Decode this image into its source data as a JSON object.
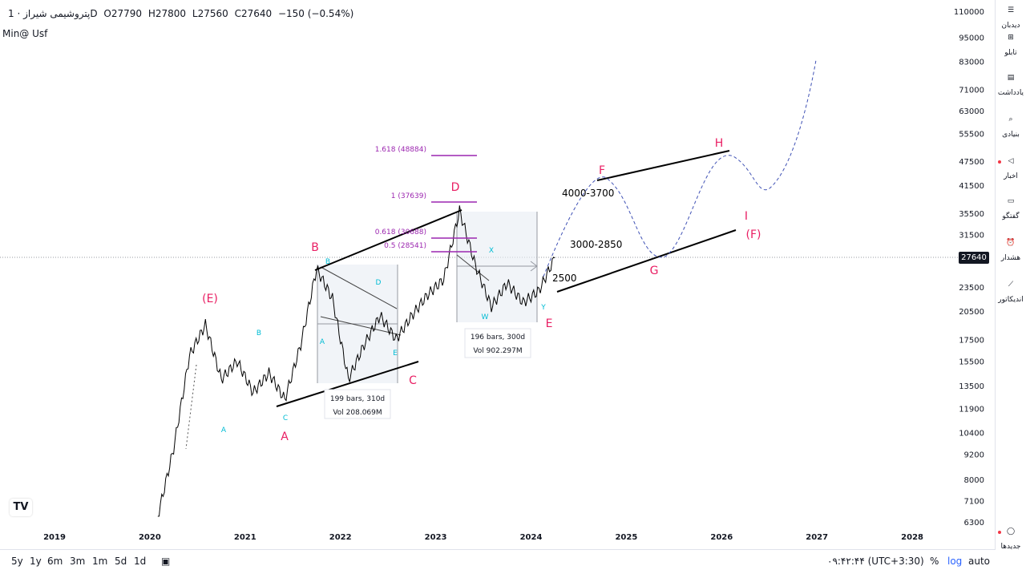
{
  "header": {
    "symbol": "پتروشیمی شیراز · 1D",
    "open": "O27790",
    "high": "H27800",
    "low": "L27560",
    "close": "C27640",
    "change": "−150 (−0.54%)",
    "subtitle": "Min@ Usf"
  },
  "chart_data": {
    "type": "line",
    "scale": "log",
    "x_tick_labels": [
      "2019",
      "2020",
      "2021",
      "2022",
      "2023",
      "2024",
      "2025",
      "2026",
      "2027",
      "2028"
    ],
    "y_tick_labels": [
      "110000",
      "95000",
      "83000",
      "71000",
      "63000",
      "55500",
      "47500",
      "41500",
      "35500",
      "31500",
      "27640",
      "23500",
      "20500",
      "17500",
      "15500",
      "13500",
      "11900",
      "10400",
      "9200",
      "8000",
      "7100",
      "6300"
    ],
    "last_price": "27640",
    "ylim": [
      6000,
      115000
    ],
    "series": [
      {
        "x": [
          "2020-02",
          "2020-04",
          "2020-06",
          "2020-08",
          "2020-10",
          "2020-12",
          "2021-02",
          "2021-04",
          "2021-06",
          "2021-08",
          "2021-10",
          "2021-12",
          "2022-02",
          "2022-04",
          "2022-06",
          "2022-08",
          "2022-10",
          "2022-12",
          "2023-02",
          "2023-04",
          "2023-06",
          "2023-08",
          "2023-10",
          "2023-12",
          "2024-02",
          "2024-04"
        ],
        "values": [
          6500,
          9500,
          16000,
          19000,
          14000,
          15500,
          13000,
          14500,
          12500,
          17000,
          26000,
          22000,
          14000,
          17000,
          20000,
          17500,
          20000,
          22500,
          24500,
          36000,
          26500,
          21000,
          24000,
          21500,
          23000,
          27640
        ]
      }
    ],
    "annotations": {
      "wave_labels_pink": [
        "(E)",
        "A",
        "B",
        "C",
        "D",
        "E",
        "F",
        "G",
        "H",
        "I",
        "(F)"
      ],
      "wave_labels_cyan": [
        "A",
        "B",
        "C",
        "B",
        "A",
        "D",
        "E",
        "X",
        "W",
        "Y"
      ],
      "fib_levels": [
        "1.618 (48884)",
        "1 (37639)",
        "0.618 (30688)",
        "0.5 (28541)"
      ],
      "targets": [
        "4000-3700",
        "3000-2850",
        "2500"
      ],
      "range_box_1": {
        "bars": "199 bars, 310d",
        "vol": "Vol 208.069M"
      },
      "range_box_2": {
        "bars": "196 bars, 300d",
        "vol": "Vol 902.297M"
      }
    }
  },
  "right_toolbar": [
    "دیدبان",
    "تابلو",
    "یادداشت",
    "بنیادی",
    "اخبار",
    "گفتگو",
    "هشدار",
    "اندیکاتور",
    "جدیدها"
  ],
  "bottom_bar": {
    "timeframes": [
      "5y",
      "1y",
      "6m",
      "3m",
      "1m",
      "5d",
      "1d"
    ],
    "clock": "۰۹:۴۲:۴۴ (UTC+3:30)",
    "percent": "%",
    "log": "log",
    "auto": "auto"
  },
  "colors": {
    "pink": "#e91e63",
    "cyan": "#00bcd4",
    "purple": "#9c27b0",
    "candle": "#000000"
  }
}
